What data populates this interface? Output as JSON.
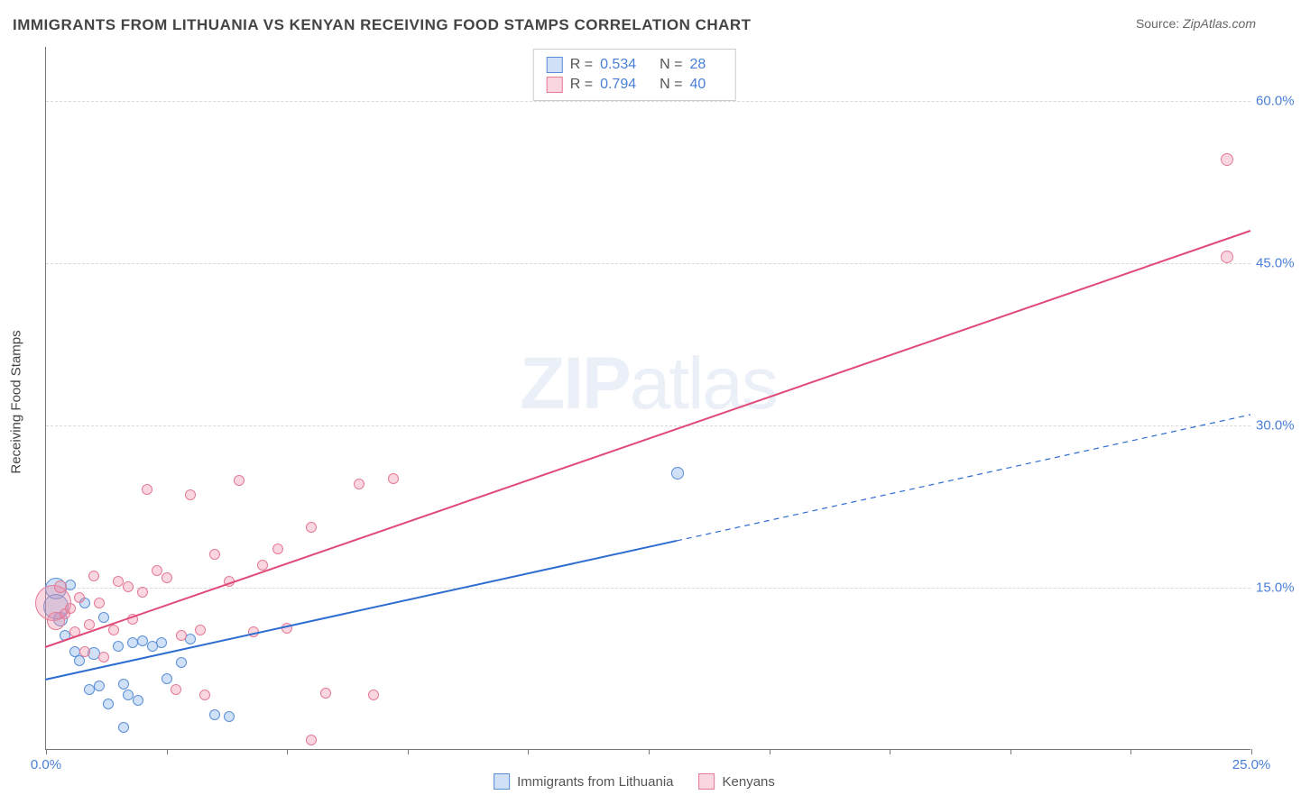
{
  "header": {
    "title": "IMMIGRANTS FROM LITHUANIA VS KENYAN RECEIVING FOOD STAMPS CORRELATION CHART",
    "source_label": "Source:",
    "source_value": "ZipAtlas.com"
  },
  "watermark": {
    "part1": "ZIP",
    "part2": "atlas"
  },
  "chart": {
    "type": "scatter",
    "ylabel": "Receiving Food Stamps",
    "xlim": [
      0,
      25
    ],
    "ylim": [
      0,
      65
    ],
    "xtick_positions": [
      0,
      2.5,
      5,
      7.5,
      10,
      12.5,
      15,
      17.5,
      20,
      22.5,
      25
    ],
    "xtick_labels": {
      "0": "0.0%",
      "25": "25.0%"
    },
    "ytick_positions": [
      15,
      30,
      45,
      60
    ],
    "ytick_labels": {
      "15": "15.0%",
      "30": "30.0%",
      "45": "45.0%",
      "60": "60.0%"
    },
    "background_color": "#ffffff",
    "grid_color": "#d8d8d8",
    "axis_color": "#777777",
    "tick_label_color": "#4a7fd8",
    "tick_fontsize": 15,
    "ylabel_fontsize": 15,
    "marker_base_radius": 6
  },
  "series": [
    {
      "name": "Immigrants from Lithuania",
      "fill": "rgba(120,165,230,0.35)",
      "stroke": "#5a8fd8",
      "line_color": "#2d6cd0",
      "line_width": 2,
      "R": "0.534",
      "N": "28",
      "trend": {
        "x1": 0,
        "y1": 6.5,
        "x2": 25,
        "y2": 31,
        "xmax_data": 13.1
      },
      "points": [
        {
          "x": 0.2,
          "y": 14.8,
          "r": 12
        },
        {
          "x": 0.2,
          "y": 13.2,
          "r": 14
        },
        {
          "x": 0.3,
          "y": 12.0,
          "r": 8
        },
        {
          "x": 0.4,
          "y": 10.5,
          "r": 6
        },
        {
          "x": 0.5,
          "y": 15.2,
          "r": 6
        },
        {
          "x": 0.6,
          "y": 9.0,
          "r": 6
        },
        {
          "x": 0.7,
          "y": 8.2,
          "r": 6
        },
        {
          "x": 0.8,
          "y": 13.5,
          "r": 6
        },
        {
          "x": 0.9,
          "y": 5.5,
          "r": 6
        },
        {
          "x": 1.0,
          "y": 8.8,
          "r": 7
        },
        {
          "x": 1.1,
          "y": 5.8,
          "r": 6
        },
        {
          "x": 1.2,
          "y": 12.2,
          "r": 6
        },
        {
          "x": 1.3,
          "y": 4.2,
          "r": 6
        },
        {
          "x": 1.5,
          "y": 9.5,
          "r": 6
        },
        {
          "x": 1.6,
          "y": 6.0,
          "r": 6
        },
        {
          "x": 1.7,
          "y": 5.0,
          "r": 6
        },
        {
          "x": 1.8,
          "y": 9.8,
          "r": 6
        },
        {
          "x": 1.9,
          "y": 4.5,
          "r": 6
        },
        {
          "x": 2.0,
          "y": 10.0,
          "r": 6
        },
        {
          "x": 2.2,
          "y": 9.5,
          "r": 6
        },
        {
          "x": 2.4,
          "y": 9.8,
          "r": 6
        },
        {
          "x": 2.5,
          "y": 6.5,
          "r": 6
        },
        {
          "x": 2.8,
          "y": 8.0,
          "r": 6
        },
        {
          "x": 3.0,
          "y": 10.2,
          "r": 6
        },
        {
          "x": 3.5,
          "y": 3.2,
          "r": 6
        },
        {
          "x": 3.8,
          "y": 3.0,
          "r": 6
        },
        {
          "x": 1.6,
          "y": 2.0,
          "r": 6
        },
        {
          "x": 13.1,
          "y": 25.5,
          "r": 7
        }
      ]
    },
    {
      "name": "Kenyans",
      "fill": "rgba(240,140,165,0.35)",
      "stroke": "#e57a95",
      "line_color": "#e04a78",
      "line_width": 2,
      "R": "0.794",
      "N": "40",
      "trend": {
        "x1": 0,
        "y1": 9.5,
        "x2": 25,
        "y2": 48,
        "xmax_data": 25
      },
      "points": [
        {
          "x": 0.15,
          "y": 13.5,
          "r": 20
        },
        {
          "x": 0.2,
          "y": 11.8,
          "r": 10
        },
        {
          "x": 0.3,
          "y": 15.0,
          "r": 7
        },
        {
          "x": 0.4,
          "y": 12.5,
          "r": 6
        },
        {
          "x": 0.5,
          "y": 13.0,
          "r": 6
        },
        {
          "x": 0.6,
          "y": 10.8,
          "r": 6
        },
        {
          "x": 0.7,
          "y": 14.0,
          "r": 6
        },
        {
          "x": 0.8,
          "y": 9.0,
          "r": 6
        },
        {
          "x": 0.9,
          "y": 11.5,
          "r": 6
        },
        {
          "x": 1.0,
          "y": 16.0,
          "r": 6
        },
        {
          "x": 1.1,
          "y": 13.5,
          "r": 6
        },
        {
          "x": 1.2,
          "y": 8.5,
          "r": 6
        },
        {
          "x": 1.4,
          "y": 11.0,
          "r": 6
        },
        {
          "x": 1.5,
          "y": 15.5,
          "r": 6
        },
        {
          "x": 1.7,
          "y": 15.0,
          "r": 6
        },
        {
          "x": 1.8,
          "y": 12.0,
          "r": 6
        },
        {
          "x": 2.0,
          "y": 14.5,
          "r": 6
        },
        {
          "x": 2.1,
          "y": 24.0,
          "r": 6
        },
        {
          "x": 2.3,
          "y": 16.5,
          "r": 6
        },
        {
          "x": 2.5,
          "y": 15.8,
          "r": 6
        },
        {
          "x": 2.8,
          "y": 10.5,
          "r": 6
        },
        {
          "x": 3.0,
          "y": 23.5,
          "r": 6
        },
        {
          "x": 3.2,
          "y": 11.0,
          "r": 6
        },
        {
          "x": 3.5,
          "y": 18.0,
          "r": 6
        },
        {
          "x": 3.8,
          "y": 15.5,
          "r": 6
        },
        {
          "x": 4.0,
          "y": 24.8,
          "r": 6
        },
        {
          "x": 4.3,
          "y": 10.8,
          "r": 6
        },
        {
          "x": 4.5,
          "y": 17.0,
          "r": 6
        },
        {
          "x": 4.8,
          "y": 18.5,
          "r": 6
        },
        {
          "x": 5.0,
          "y": 11.2,
          "r": 6
        },
        {
          "x": 5.5,
          "y": 20.5,
          "r": 6
        },
        {
          "x": 5.8,
          "y": 5.2,
          "r": 6
        },
        {
          "x": 6.5,
          "y": 24.5,
          "r": 6
        },
        {
          "x": 6.8,
          "y": 5.0,
          "r": 6
        },
        {
          "x": 7.2,
          "y": 25.0,
          "r": 6
        },
        {
          "x": 3.3,
          "y": 5.0,
          "r": 6
        },
        {
          "x": 2.7,
          "y": 5.5,
          "r": 6
        },
        {
          "x": 5.5,
          "y": 0.8,
          "r": 6
        },
        {
          "x": 24.5,
          "y": 45.5,
          "r": 7
        },
        {
          "x": 24.5,
          "y": 54.5,
          "r": 7
        }
      ]
    }
  ]
}
